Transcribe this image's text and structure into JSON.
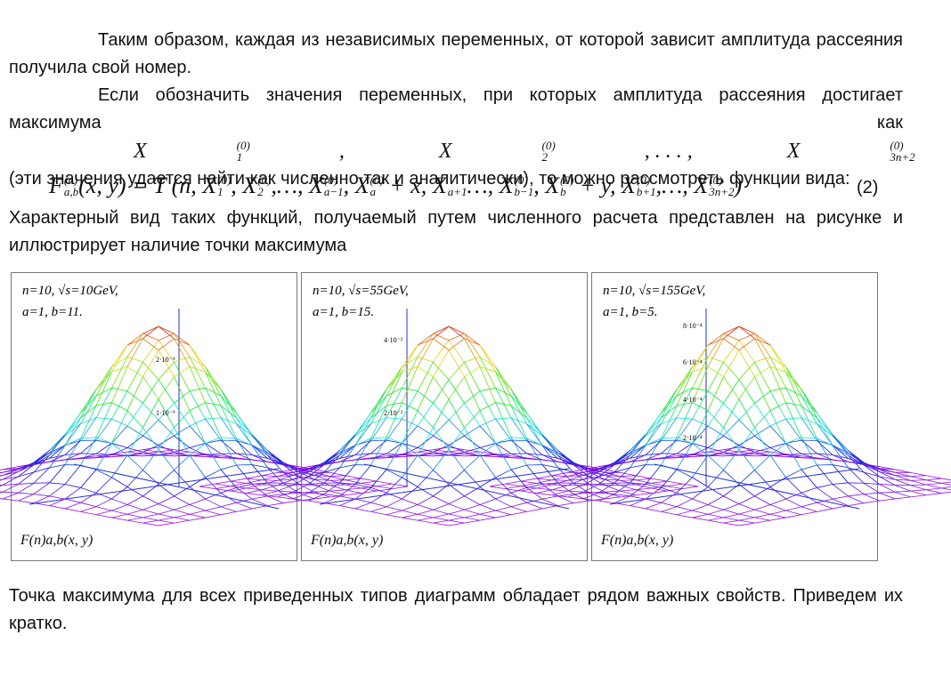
{
  "text": {
    "p1": "Таким образом, каждая из независимых переменных, от которой зависит амплитуда рассеяния получила свой номер.",
    "p2_before": "Если обозначить значения переменных, при которых амплитуда рассеяния достигает максимума как",
    "p2_after": "(эти значения удается найти как численно так и аналитически), то можно рассмотреть функции вида:",
    "p3": "Характерный вид таких функций, получаемый путем численного расчета представлен на рисунке и иллюстрирует наличие точки максимума",
    "p4": "Точка максимума для всех приведенных типов диаграмм обладает рядом важных свойств. Приведем их кратко."
  },
  "formula_max": [
    {
      "b": "X",
      "sub": "1",
      "sup": "(0)"
    },
    ", ",
    {
      "b": "X",
      "sub": "2",
      "sup": "(0)"
    },
    ", . . . , ",
    {
      "b": "X",
      "sub": "3n+2",
      "sup": "(0)"
    }
  ],
  "formula_F": [
    {
      "b": "F",
      "sub": "a,b",
      "sup": "(n)"
    },
    "(x, y) = T (n, ",
    {
      "b": "X",
      "sub": "1",
      "sup": "(0)"
    },
    ", ",
    {
      "b": "X",
      "sub": "2",
      "sup": "(0)"
    },
    ",…, ",
    {
      "b": "X",
      "sub": "a−1",
      "sup": "(0)"
    },
    ", ",
    {
      "b": "X",
      "sub": "a",
      "sup": "(0)"
    },
    " + x, ",
    {
      "b": "X",
      "sub": "a+1",
      "sup": ""
    },
    "…, ",
    {
      "b": "X",
      "sub": "b−1",
      "sup": "(0)"
    },
    ", ",
    {
      "b": "X",
      "sub": "b",
      "sup": "(0)"
    },
    " + y, ",
    {
      "b": "X",
      "sub": "b+1",
      "sup": "(0)"
    },
    ",…, ",
    {
      "b": "X",
      "sub": "3n+2",
      "sup": "(0)"
    },
    ")"
  ],
  "equation_number": "(2)",
  "function_label": "F(n)a,b(x, y)",
  "figures": [
    {
      "params": [
        "n=10, √s=10GeV,",
        "a=1, b=11."
      ],
      "ticks": [
        "2·10⁻⁹",
        "1·10⁻⁹"
      ]
    },
    {
      "params": [
        "n=10, √s=55GeV,",
        "a=1, b=15."
      ],
      "ticks": [
        "4·10⁻²",
        "2·10⁻²"
      ]
    },
    {
      "params": [
        "n=10, √s=155GeV,",
        "a=1, b=5."
      ],
      "ticks": [
        "8·10⁻⁴",
        "6·10⁻⁴",
        "4·10⁻⁴",
        "2·10⁻⁴"
      ]
    }
  ]
}
